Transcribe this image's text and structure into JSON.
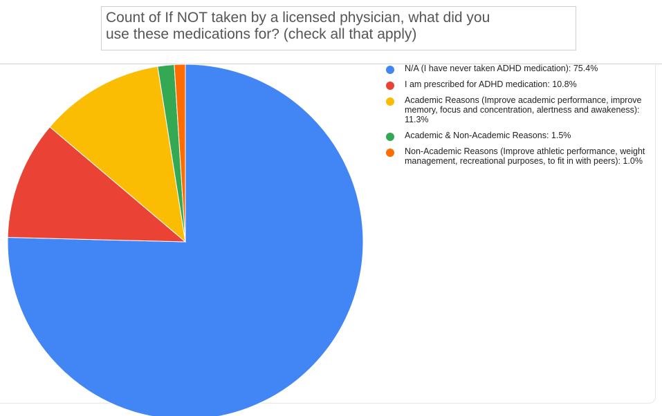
{
  "title": {
    "line1": "Count of If NOT taken by a licensed physician, what did you",
    "line2": "use these medications for? (check all that apply)"
  },
  "chart_data": {
    "type": "pie",
    "title": "Count of If NOT taken by a licensed physician, what did you use these medications for? (check all that apply)",
    "legend_position": "right",
    "slices": [
      {
        "label": "N/A (I have never taken ADHD medication)",
        "value": 75.4,
        "color": "#4285F4",
        "legend_text": "N/A (I have never taken ADHD medication): 75.4%"
      },
      {
        "label": "I am prescribed for ADHD medication",
        "value": 10.8,
        "color": "#EA4335",
        "legend_text": "I am prescribed for ADHD medication: 10.8%"
      },
      {
        "label": "Academic Reasons (Improve academic performance, improve memory, focus and concentration, alertness and awakeness)",
        "value": 11.3,
        "color": "#FBBC04",
        "legend_text": "Academic Reasons (Improve academic performance, improve memory, focus and concentration, alertness and awakeness): 11.3%"
      },
      {
        "label": "Academic & Non-Academic Reasons",
        "value": 1.5,
        "color": "#34A853",
        "legend_text": "Academic & Non-Academic Reasons: 1.5%"
      },
      {
        "label": "Non-Academic Reasons (Improve athletic performance, weight management, recreational purposes, to fit in with peers)",
        "value": 1.0,
        "color": "#FF6D01",
        "legend_text": "Non-Academic Reasons (Improve athletic performance, weight management, recreational purposes, to fit in with peers): 1.0%"
      }
    ]
  }
}
